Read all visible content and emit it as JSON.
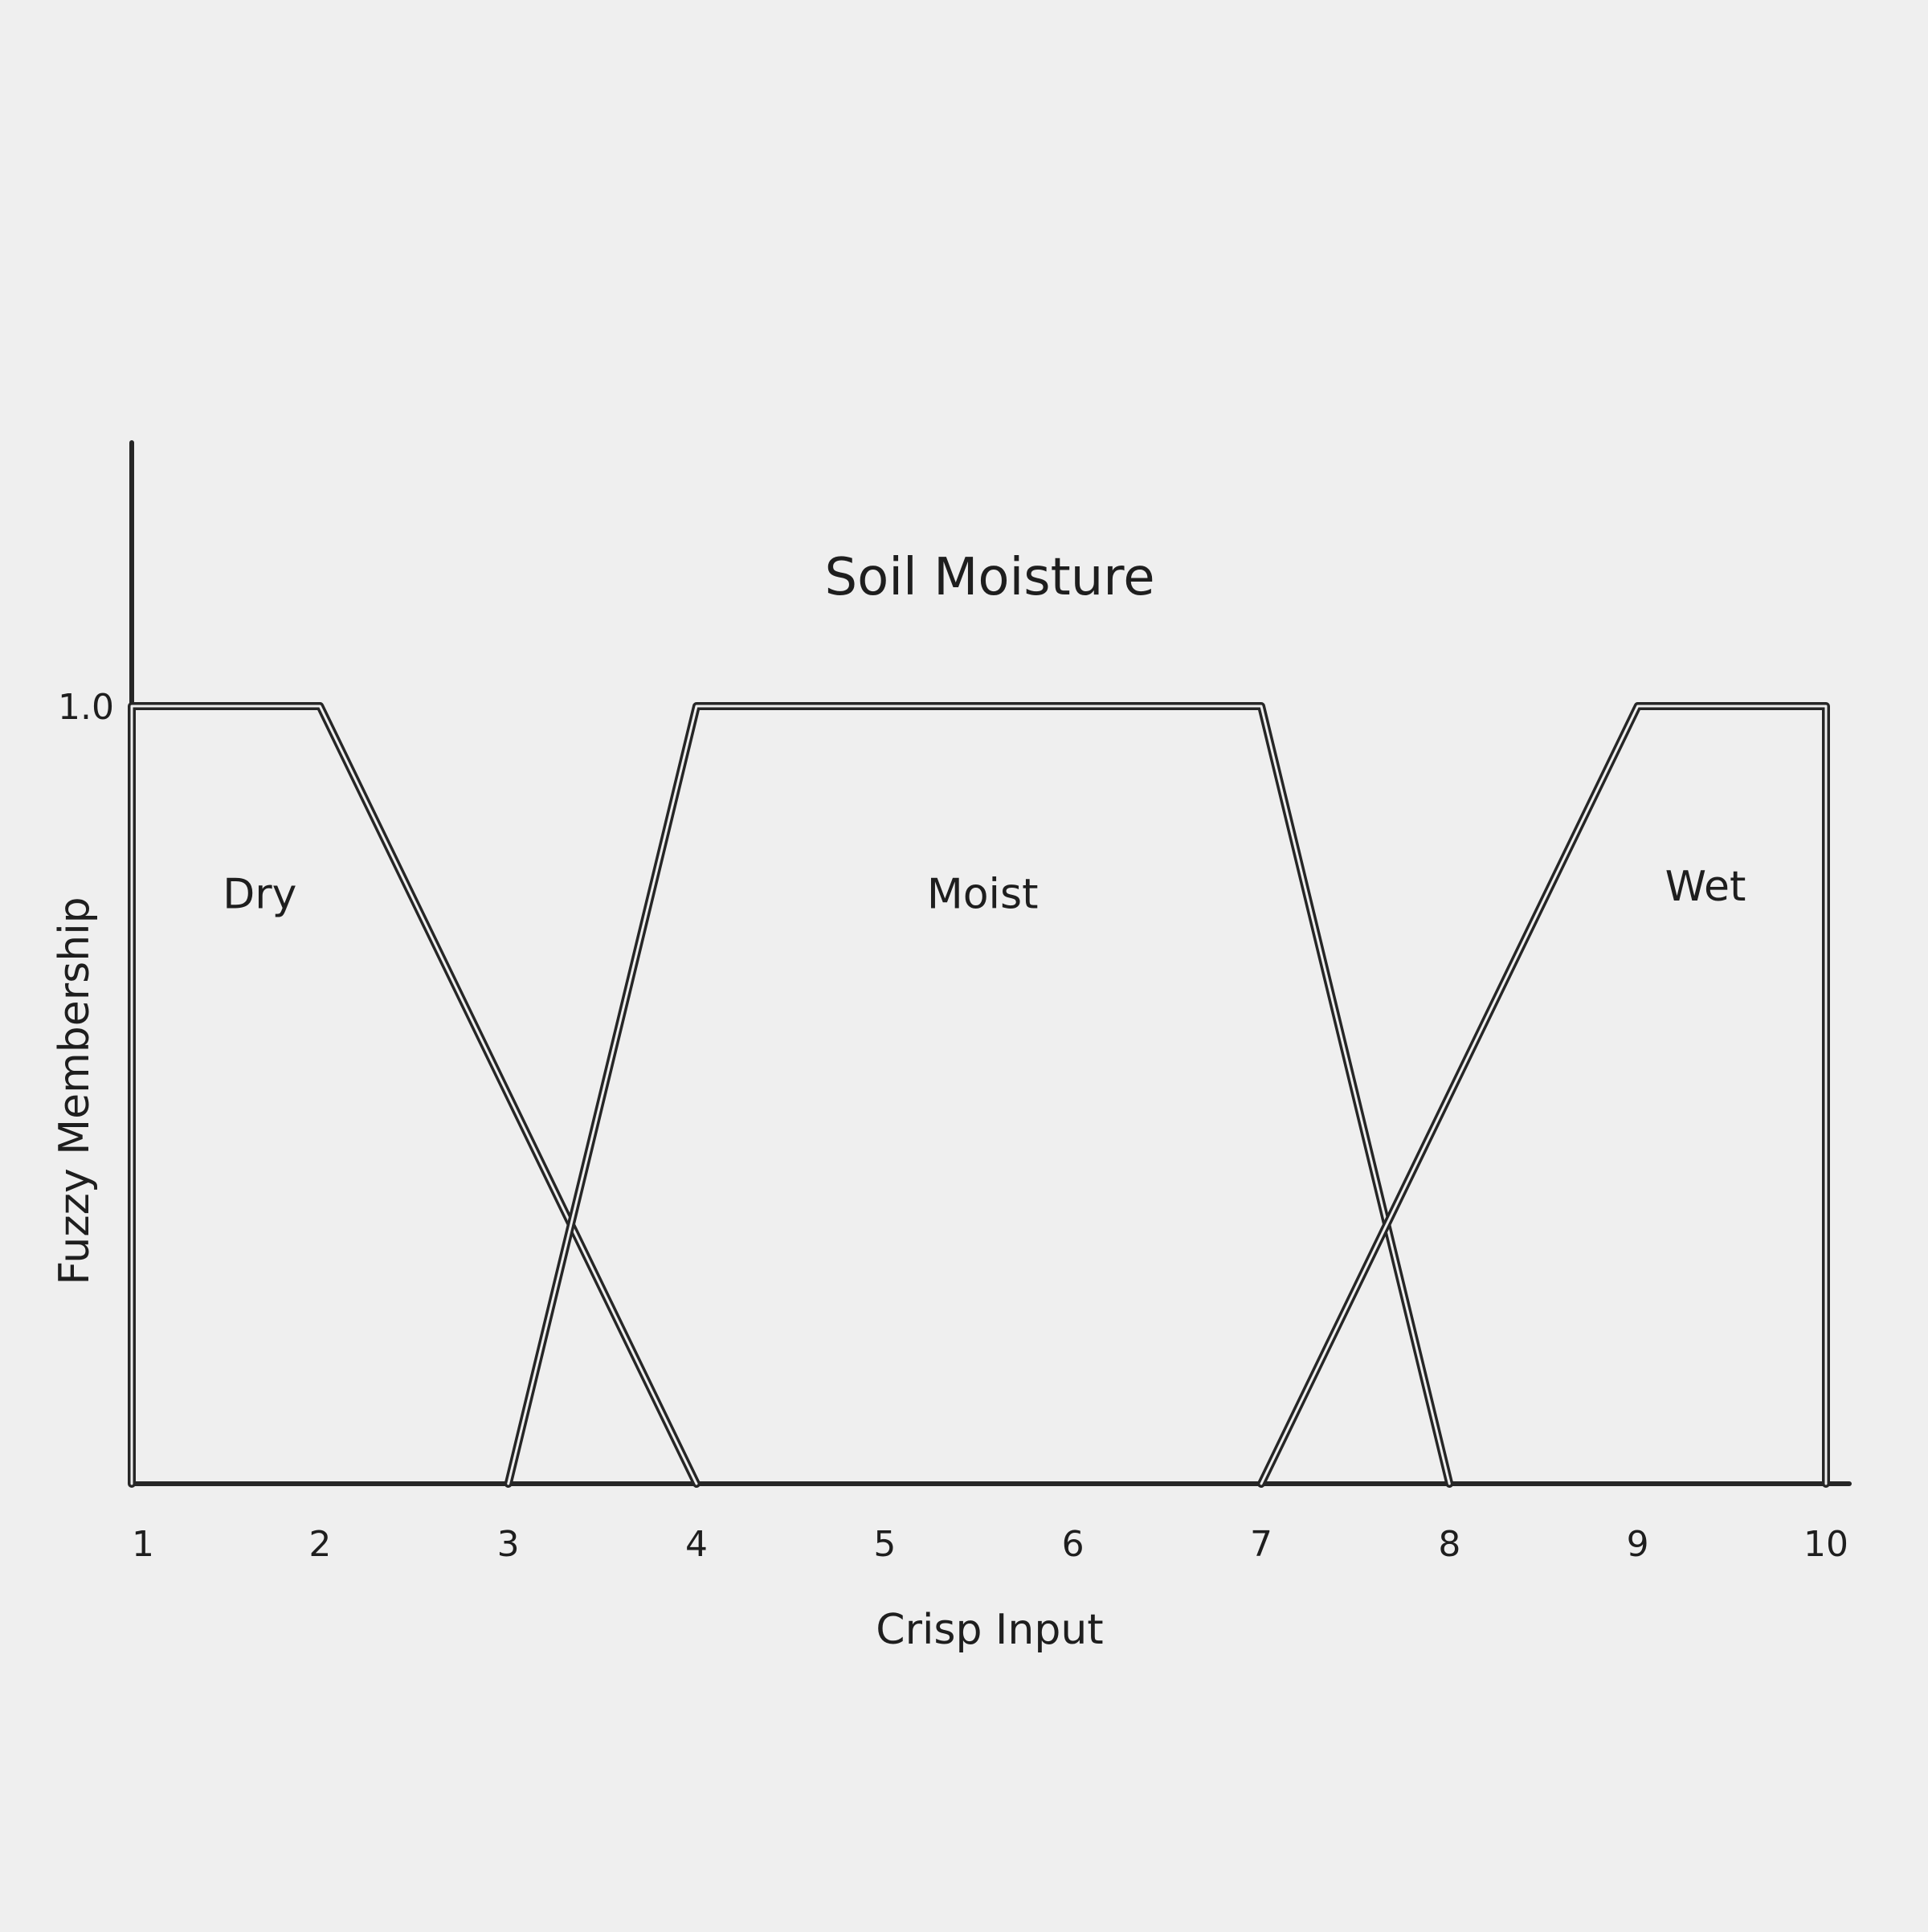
{
  "chart_data": {
    "type": "line",
    "title": "Soil Moisture",
    "xlabel": "Crisp Input",
    "ylabel": "Fuzzy Membership",
    "xlim": [
      1,
      10
    ],
    "ylim": [
      0,
      1.0
    ],
    "x_ticks": [
      "1",
      "2",
      "3",
      "4",
      "5",
      "6",
      "7",
      "8",
      "9",
      "10"
    ],
    "y_ticks": [
      "1.0"
    ],
    "grid": false,
    "legend": "none",
    "series": [
      {
        "name": "Dry",
        "points": [
          [
            1,
            0
          ],
          [
            1,
            1.0
          ],
          [
            2,
            1.0
          ],
          [
            4,
            0
          ]
        ]
      },
      {
        "name": "Moist",
        "points": [
          [
            3,
            0
          ],
          [
            4,
            1.0
          ],
          [
            7,
            1.0
          ],
          [
            8,
            0
          ]
        ]
      },
      {
        "name": "Wet",
        "points": [
          [
            7,
            0
          ],
          [
            9,
            1.0
          ],
          [
            10,
            1.0
          ],
          [
            10,
            0
          ]
        ]
      }
    ],
    "series_labels": [
      {
        "text": "Dry",
        "x": 1.68,
        "y": 0.74
      },
      {
        "text": "Moist",
        "x": 5.52,
        "y": 0.74
      },
      {
        "text": "Wet",
        "x": 9.36,
        "y": 0.75
      }
    ],
    "line_color": "#262626",
    "background_color": "#efefef"
  }
}
